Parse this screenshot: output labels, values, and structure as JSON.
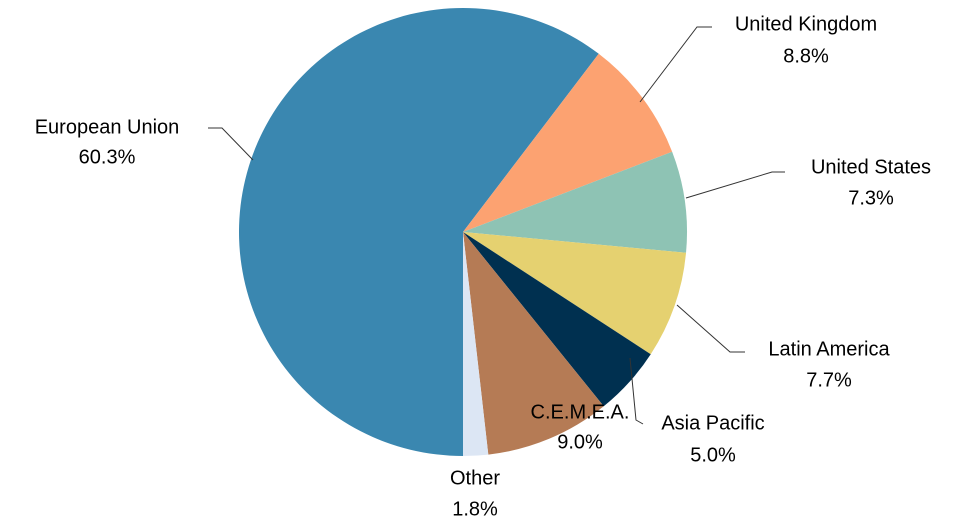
{
  "chart_data": {
    "type": "pie",
    "categories": [
      "European Union",
      "United Kingdom",
      "United States",
      "Latin America",
      "Asia Pacific",
      "C.E.M.E.A.",
      "Other"
    ],
    "values": [
      60.3,
      8.8,
      7.3,
      7.7,
      5.0,
      9.0,
      1.8
    ],
    "value_labels": [
      "60.3%",
      "8.8%",
      "7.3%",
      "7.7%",
      "5.0%",
      "9.0%",
      "1.8%"
    ],
    "colors": [
      "#3a87b0",
      "#fca271",
      "#8ec3b4",
      "#e5d170",
      "#003050",
      "#b57b55",
      "#dce6f4"
    ]
  }
}
